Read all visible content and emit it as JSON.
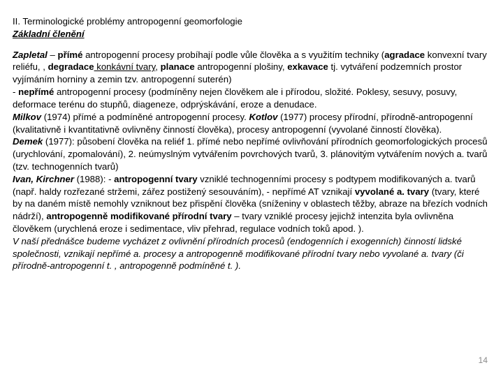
{
  "title": "II. Terminologické problémy antropogenní geomorfologie",
  "subtitle_prefix": "Základní členění",
  "p1_a": "Zapletal",
  "p1_b": " – ",
  "p1_c": "přímé",
  "p1_d": " antropogenní procesy probíhají podle vůle člověka a s využitím techniky (",
  "p1_e": "agradace",
  "p1_f": " konvexní tvary reliéfu, , ",
  "p1_g": "degradace",
  "p1_h": " konkávní tvary",
  "p1_i": ", ",
  "p1_j": "planace",
  "p1_k": " antropogenní plošiny, ",
  "p1_l": "exkavace",
  "p1_m": " tj. vytváření podzemních prostor vyjímáním horniny a zemin tzv. antropogenní suterén)",
  "p2_a": "- ",
  "p2_b": "nepřímé",
  "p2_c": " antropogenní procesy (podmíněny nejen člověkem ale i přírodou, složité. Poklesy, sesuvy, posuvy, deformace terénu do stupňů, diageneze, odprýskávání, eroze a denudace.",
  "p3_a": "Milkov",
  "p3_b": " (1974) přímé a podmíněné antropogenní procesy. ",
  "p3_c": "Kotlov",
  "p3_d": " (1977) procesy přírodní, přírodně-antropogenní (kvalitativně i kvantitativně ovlivněny činností člověka), procesy antropogenní (vyvolané činností člověka).",
  "p4_a": "Demek",
  "p4_b": " (1977): působení člověka na reliéf 1. přímé nebo nepřímé ovlivňování přírodních geomorfologických procesů (urychlování, zpomalování), 2. neúmyslným vytvářením povrchových tvarů, 3. plánovitým vytvářením nových a. tvarů (tzv. technogenních tvarů)",
  "p5_a": "Ivan, Kirchner",
  "p5_b": " (1988): - ",
  "p5_c": "antropogenní tvary",
  "p5_d": " vzniklé technogenními procesy s podtypem modifikovaných a. tvarů (např. haldy rozřezané stržemi, zářez postižený sesouváním), - nepřímé AT vznikají ",
  "p5_e": "vyvolané a. tvary",
  "p5_f": " (tvary, které by na daném místě nemohly vzniknout bez přispění člověka (sníženiny v oblastech těžby, abraze na březích vodních nádrží), ",
  "p5_g": "antropogenně modifikované přírodní tvary",
  "p5_h": " – tvary vzniklé procesy jejichž intenzita byla ovlivněna člověkem (urychlená eroze i sedimentace, vliv přehrad, regulace vodních toků apod. ).",
  "p6": "V naší přednášce budeme vycházet z ovlivnění přírodních procesů (endogenních i exogenních) činností lidské společnosti, vznikají nepřímé a. procesy a antropogenně modifikované přírodní tvary nebo vyvolané a. tvary (či přírodně-antropogenní t. , antropogenně podmíněné t. ).",
  "pagenum": "14"
}
